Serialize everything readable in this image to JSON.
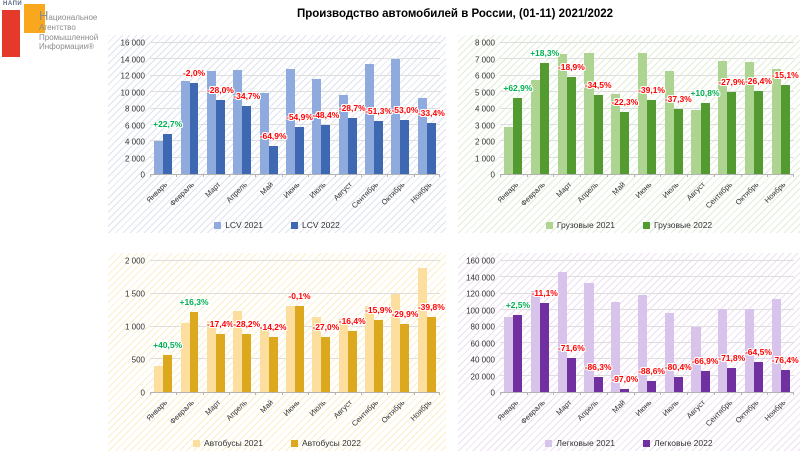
{
  "logo": {
    "abbr": "НАПИ",
    "lines": [
      "Национальное",
      "Агентство",
      "Промышленной",
      "Информации®"
    ],
    "red": "#e53a2b",
    "orange": "#f9a71c"
  },
  "title": "Производство автомобилей в России, (01-11) 2021/2022",
  "months": [
    "Январь",
    "Февраль",
    "Март",
    "Апрель",
    "Май",
    "Июнь",
    "Июль",
    "Август",
    "Сентябрь",
    "Октябрь",
    "Ноябрь"
  ],
  "label_colors": {
    "positive": "#00B050",
    "negative": "#FF0000"
  },
  "chart_data": [
    {
      "type": "bar",
      "name": "lcv",
      "categories": [
        "Январь",
        "Февраль",
        "Март",
        "Апрель",
        "Май",
        "Июнь",
        "Июль",
        "Август",
        "Сентябрь",
        "Октябрь",
        "Ноябрь"
      ],
      "series": [
        {
          "name": "LCV 2021",
          "color": "#8FAADC",
          "values": [
            4000,
            11300,
            12600,
            12750,
            9900,
            12800,
            11600,
            9600,
            13400,
            14000,
            9300
          ]
        },
        {
          "name": "LCV 2022",
          "color": "#3E68B2",
          "values": [
            4900,
            11070,
            9070,
            8330,
            3480,
            5770,
            5990,
            6850,
            6530,
            6580,
            6190
          ]
        }
      ],
      "labels": [
        "+22,7%",
        "-2,0%",
        "-28,0%",
        "-34,7%",
        "-64,9%",
        "-54,9%",
        "-48,4%",
        "-28,7%",
        "-51,3%",
        "-53,0%",
        "-33,4%"
      ],
      "ylim": [
        0,
        16000
      ],
      "ytick_step": 2000,
      "grid": true,
      "legend_position": "bottom",
      "hatch": "#dfe3ef"
    },
    {
      "type": "bar",
      "name": "trucks",
      "categories": [
        "Январь",
        "Февраль",
        "Март",
        "Апрель",
        "Май",
        "Июнь",
        "Июль",
        "Август",
        "Сентябрь",
        "Октябрь",
        "Ноябрь"
      ],
      "series": [
        {
          "name": "Грузовые 2021",
          "color": "#ADD491",
          "values": [
            2850,
            5750,
            7300,
            7400,
            4900,
            7400,
            6300,
            3900,
            6900,
            6850,
            6400
          ]
        },
        {
          "name": "Грузовые 2022",
          "color": "#539B31",
          "values": [
            4640,
            6800,
            5920,
            4850,
            3810,
            4510,
            3950,
            4320,
            4980,
            5040,
            5430
          ]
        }
      ],
      "labels": [
        "+62,9%",
        "+18,3%",
        "-18,9%",
        "-34,5%",
        "-22,3%",
        "-39,1%",
        "-37,3%",
        "+10,8%",
        "-27,9%",
        "-26,4%",
        "-15,1%"
      ],
      "ylim": [
        0,
        8000
      ],
      "ytick_step": 1000,
      "grid": true,
      "legend_position": "bottom",
      "hatch": "#e2eed8"
    },
    {
      "type": "bar",
      "name": "buses",
      "categories": [
        "Январь",
        "Февраль",
        "Март",
        "Апрель",
        "Май",
        "Июнь",
        "Июль",
        "Август",
        "Сентябрь",
        "Октябрь",
        "Ноябрь"
      ],
      "series": [
        {
          "name": "Автобусы 2021",
          "color": "#FCDF9F",
          "values": [
            400,
            1050,
            1080,
            1240,
            980,
            1310,
            1150,
            1110,
            1310,
            1490,
            1890
          ]
        },
        {
          "name": "Автобусы 2022",
          "color": "#DCA91E",
          "values": [
            560,
            1220,
            890,
            890,
            840,
            1310,
            840,
            930,
            1100,
            1045,
            1140
          ]
        }
      ],
      "labels": [
        "+40,5%",
        "+16,3%",
        "-17,4%",
        "-28,2%",
        "-14,2%",
        "-0,1%",
        "-27,0%",
        "-16,4%",
        "-15,9%",
        "-29,9%",
        "-39,8%"
      ],
      "ylim": [
        0,
        2000
      ],
      "ytick_step": 500,
      "grid": true,
      "legend_position": "bottom",
      "hatch": "#fbeecb"
    },
    {
      "type": "bar",
      "name": "passenger-cars",
      "categories": [
        "Январь",
        "Февраль",
        "Март",
        "Апрель",
        "Май",
        "Июнь",
        "Июль",
        "Август",
        "Сентябрь",
        "Октябрь",
        "Ноябрь"
      ],
      "series": [
        {
          "name": "Легковые 2021",
          "color": "#D8C3EB",
          "values": [
            92000,
            123000,
            147000,
            133000,
            110000,
            119000,
            96000,
            79000,
            102000,
            102000,
            113000
          ]
        },
        {
          "name": "Легковые 2022",
          "color": "#7030A0",
          "values": [
            94300,
            109300,
            42100,
            18200,
            3300,
            13600,
            18800,
            26100,
            28800,
            36200,
            26700
          ]
        }
      ],
      "labels": [
        "+2,5%",
        "-11,1%",
        "-71,6%",
        "-86,3%",
        "-97,0%",
        "-88,6%",
        "-80,4%",
        "-66,9%",
        "-71,8%",
        "-64,5%",
        "-76,4%"
      ],
      "ylim": [
        0,
        160000
      ],
      "ytick_step": 20000,
      "grid": true,
      "legend_position": "bottom",
      "hatch": "#eddff0"
    }
  ]
}
